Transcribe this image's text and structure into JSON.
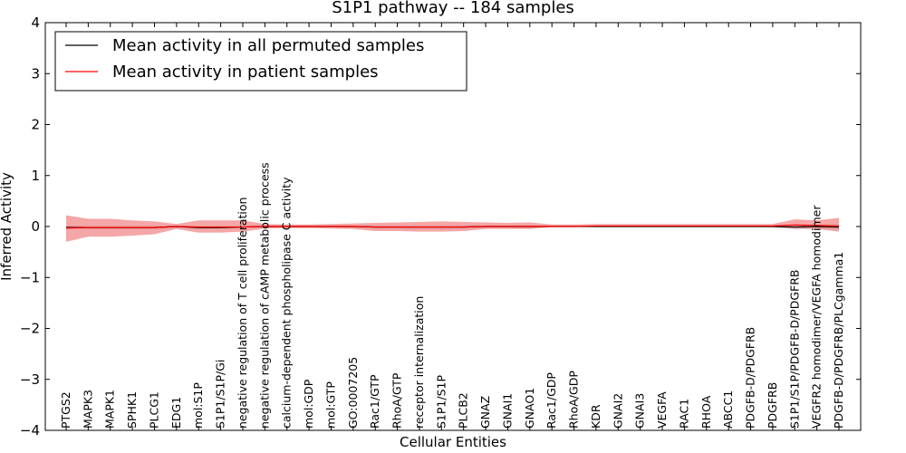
{
  "chart_data": {
    "type": "line",
    "title": "S1P1 pathway -- 184 samples",
    "xlabel": "Cellular Entities",
    "ylabel": "Inferred Activity",
    "ylim": [
      -4,
      4
    ],
    "yticks": [
      -4,
      -3,
      -2,
      -1,
      0,
      1,
      2,
      3,
      4
    ],
    "ytick_labels": [
      "−4",
      "−3",
      "−2",
      "−1",
      "0",
      "1",
      "2",
      "3",
      "4"
    ],
    "legend_position": "top-left",
    "categories": [
      "PTGS2",
      "MAPK3",
      "MAPK1",
      "SPHK1",
      "PLCG1",
      "EDG1",
      "mol:S1P",
      "S1P1/S1P/Gi",
      "negative regulation of T cell proliferation",
      "negative regulation of cAMP metabolic process",
      "calcium-dependent phospholipase C activity",
      "mol:GDP",
      "mol:GTP",
      "GO:0007205",
      "Rac1/GTP",
      "RhoA/GTP",
      "receptor internalization",
      "S1P1/S1P",
      "PLCB2",
      "GNAZ",
      "GNAI1",
      "GNAO1",
      "Rac1/GDP",
      "RhoA/GDP",
      "KDR",
      "GNAI2",
      "GNAI3",
      "VEGFA",
      "RAC1",
      "RHOA",
      "ABCC1",
      "PDGFB-D/PDGFRB",
      "PDGFRB",
      "S1P1/S1P/PDGFB-D/PDGFRB",
      "VEGFR2 homodimer/VEGFA homodimer",
      "PDGFB-D/PDGFRB/PLCgamma1"
    ],
    "series": [
      {
        "name": "Mean activity in all permuted samples",
        "color": "#000000",
        "values": [
          -0.02,
          -0.02,
          -0.02,
          -0.02,
          -0.02,
          0.0,
          -0.02,
          -0.02,
          -0.01,
          0.0,
          0.0,
          0.0,
          0.0,
          0.0,
          -0.01,
          -0.01,
          -0.01,
          -0.01,
          -0.01,
          0.0,
          0.0,
          0.0,
          0.0,
          0.0,
          0.0,
          0.0,
          0.0,
          0.0,
          0.0,
          0.0,
          0.0,
          0.0,
          0.0,
          -0.01,
          0.0,
          -0.01
        ],
        "band_lower": [
          -0.06,
          -0.05,
          -0.05,
          -0.05,
          -0.05,
          -0.02,
          -0.05,
          -0.05,
          -0.03,
          -0.01,
          -0.01,
          -0.01,
          -0.01,
          -0.02,
          -0.04,
          -0.04,
          -0.05,
          -0.05,
          -0.04,
          -0.02,
          -0.02,
          -0.03,
          -0.01,
          -0.01,
          -0.01,
          -0.01,
          -0.01,
          -0.01,
          -0.01,
          -0.01,
          -0.01,
          -0.01,
          -0.02,
          -0.06,
          -0.04,
          -0.06
        ],
        "band_upper": [
          0.02,
          0.01,
          0.01,
          0.01,
          0.01,
          0.02,
          0.01,
          0.01,
          0.01,
          0.01,
          0.01,
          0.01,
          0.01,
          0.01,
          0.02,
          0.02,
          0.02,
          0.02,
          0.02,
          0.02,
          0.02,
          0.02,
          0.01,
          0.01,
          0.01,
          0.01,
          0.01,
          0.01,
          0.01,
          0.01,
          0.01,
          0.01,
          0.02,
          0.03,
          0.04,
          0.04
        ]
      },
      {
        "name": "Mean activity in patient samples",
        "color": "#ff0000",
        "values": [
          -0.03,
          -0.02,
          -0.02,
          -0.02,
          -0.02,
          0.0,
          -0.01,
          -0.01,
          -0.01,
          0.0,
          0.0,
          0.0,
          0.0,
          0.0,
          -0.01,
          -0.01,
          -0.01,
          -0.01,
          -0.01,
          0.0,
          0.0,
          0.0,
          0.0,
          0.0,
          0.01,
          0.01,
          0.01,
          0.01,
          0.01,
          0.01,
          0.01,
          0.01,
          0.01,
          0.03,
          0.02,
          0.01
        ],
        "band_lower": [
          -0.3,
          -0.2,
          -0.2,
          -0.18,
          -0.15,
          -0.05,
          -0.12,
          -0.12,
          -0.1,
          -0.04,
          -0.03,
          -0.03,
          -0.04,
          -0.05,
          -0.09,
          -0.09,
          -0.1,
          -0.1,
          -0.09,
          -0.05,
          -0.05,
          -0.05,
          -0.01,
          -0.01,
          -0.01,
          -0.01,
          -0.01,
          -0.01,
          -0.01,
          -0.01,
          -0.01,
          -0.01,
          -0.01,
          -0.04,
          -0.05,
          -0.1
        ],
        "band_upper": [
          0.22,
          0.15,
          0.15,
          0.12,
          0.1,
          0.05,
          0.12,
          0.12,
          0.12,
          0.05,
          0.04,
          0.04,
          0.05,
          0.06,
          0.07,
          0.08,
          0.09,
          0.1,
          0.09,
          0.08,
          0.07,
          0.08,
          0.04,
          0.04,
          0.05,
          0.05,
          0.05,
          0.05,
          0.05,
          0.05,
          0.05,
          0.05,
          0.05,
          0.14,
          0.12,
          0.17
        ]
      }
    ]
  }
}
